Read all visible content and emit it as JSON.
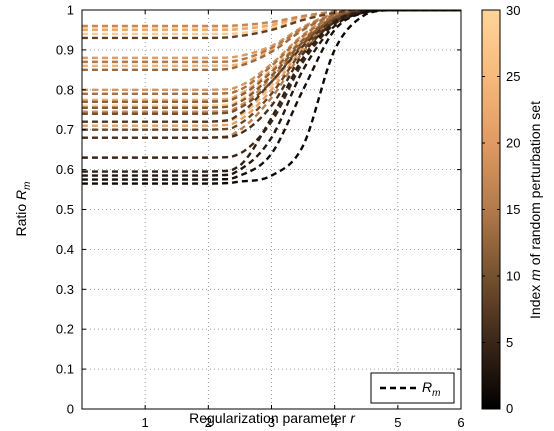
{
  "chart_data": {
    "type": "line",
    "xlabel": "Regularization parameter r",
    "ylabel": "Ratio R_m",
    "xlim": [
      0,
      6
    ],
    "ylim": [
      0,
      1
    ],
    "xticks": [
      "1",
      "2",
      "3",
      "4",
      "5",
      "6"
    ],
    "yticks": [
      "0",
      "0.1",
      "0.2",
      "0.3",
      "0.4",
      "0.5",
      "0.6",
      "0.7",
      "0.8",
      "0.9",
      "1"
    ],
    "grid": "dotted",
    "line_style": "dashed",
    "legend": {
      "label": "R_m",
      "placement": "bottom-right"
    },
    "colorbar": {
      "label": "Index m of random perturbation set",
      "range": [
        0,
        30
      ],
      "ticks": [
        "0",
        "5",
        "10",
        "15",
        "20",
        "25",
        "30"
      ],
      "colormap": [
        "#000000",
        "#3a2618",
        "#75512f",
        "#b27a4b",
        "#e09a63",
        "#f7b97c",
        "#ffd599"
      ]
    },
    "x": [
      0,
      2.0,
      2.5,
      3.0,
      3.5,
      4.0,
      4.5,
      5.0,
      6.0
    ],
    "series": [
      {
        "m": 1,
        "values": [
          0.565,
          0.565,
          0.57,
          0.585,
          0.66,
          0.9,
          0.99,
          1.0,
          1.0
        ]
      },
      {
        "m": 2,
        "values": [
          0.575,
          0.575,
          0.585,
          0.64,
          0.8,
          0.95,
          0.995,
          1.0,
          1.0
        ]
      },
      {
        "m": 3,
        "values": [
          0.585,
          0.585,
          0.6,
          0.68,
          0.85,
          0.96,
          0.995,
          1.0,
          1.0
        ]
      },
      {
        "m": 4,
        "values": [
          0.595,
          0.595,
          0.61,
          0.73,
          0.88,
          0.97,
          0.998,
          1.0,
          1.0
        ]
      },
      {
        "m": 5,
        "values": [
          0.63,
          0.63,
          0.64,
          0.72,
          0.87,
          0.965,
          0.997,
          1.0,
          1.0
        ]
      },
      {
        "m": 6,
        "values": [
          0.68,
          0.68,
          0.69,
          0.76,
          0.89,
          0.97,
          0.998,
          1.0,
          1.0
        ]
      },
      {
        "m": 7,
        "values": [
          0.72,
          0.72,
          0.74,
          0.82,
          0.91,
          0.975,
          0.998,
          1.0,
          1.0
        ]
      },
      {
        "m": 8,
        "values": [
          0.93,
          0.93,
          0.935,
          0.95,
          0.975,
          0.993,
          1.0,
          1.0,
          1.0
        ]
      },
      {
        "m": 9,
        "values": [
          0.7,
          0.7,
          0.715,
          0.79,
          0.9,
          0.972,
          0.998,
          1.0,
          1.0
        ]
      },
      {
        "m": 10,
        "values": [
          0.74,
          0.74,
          0.755,
          0.82,
          0.915,
          0.978,
          0.998,
          1.0,
          1.0
        ]
      },
      {
        "m": 11,
        "values": [
          0.755,
          0.755,
          0.77,
          0.835,
          0.92,
          0.98,
          0.999,
          1.0,
          1.0
        ]
      },
      {
        "m": 12,
        "values": [
          0.77,
          0.77,
          0.785,
          0.845,
          0.925,
          0.982,
          0.999,
          1.0,
          1.0
        ]
      },
      {
        "m": 13,
        "values": [
          0.85,
          0.85,
          0.86,
          0.895,
          0.95,
          0.988,
          1.0,
          1.0,
          1.0
        ]
      },
      {
        "m": 14,
        "values": [
          0.79,
          0.79,
          0.8,
          0.86,
          0.935,
          0.985,
          0.999,
          1.0,
          1.0
        ]
      },
      {
        "m": 15,
        "values": [
          0.87,
          0.87,
          0.875,
          0.905,
          0.955,
          0.99,
          1.0,
          1.0,
          1.0
        ]
      },
      {
        "m": 16,
        "values": [
          0.68,
          0.68,
          0.7,
          0.78,
          0.895,
          0.97,
          0.998,
          1.0,
          1.0
        ]
      },
      {
        "m": 17,
        "values": [
          0.96,
          0.96,
          0.962,
          0.97,
          0.985,
          0.996,
          1.0,
          1.0,
          1.0
        ]
      },
      {
        "m": 18,
        "values": [
          0.745,
          0.745,
          0.76,
          0.83,
          0.92,
          0.98,
          0.999,
          1.0,
          1.0
        ]
      },
      {
        "m": 19,
        "values": [
          0.8,
          0.8,
          0.81,
          0.865,
          0.938,
          0.986,
          0.999,
          1.0,
          1.0
        ]
      },
      {
        "m": 20,
        "values": [
          0.88,
          0.88,
          0.885,
          0.91,
          0.958,
          0.991,
          1.0,
          1.0,
          1.0
        ]
      },
      {
        "m": 21,
        "values": [
          0.71,
          0.71,
          0.725,
          0.8,
          0.905,
          0.974,
          0.998,
          1.0,
          1.0
        ]
      },
      {
        "m": 22,
        "values": [
          0.95,
          0.95,
          0.952,
          0.962,
          0.982,
          0.995,
          1.0,
          1.0,
          1.0
        ]
      },
      {
        "m": 23,
        "values": [
          0.775,
          0.775,
          0.79,
          0.85,
          0.928,
          0.983,
          0.999,
          1.0,
          1.0
        ]
      },
      {
        "m": 24,
        "values": [
          0.86,
          0.86,
          0.865,
          0.9,
          0.952,
          0.989,
          1.0,
          1.0,
          1.0
        ]
      },
      {
        "m": 25,
        "values": [
          0.79,
          0.79,
          0.8,
          0.86,
          0.933,
          0.985,
          0.999,
          1.0,
          1.0
        ]
      },
      {
        "m": 26,
        "values": [
          0.72,
          0.72,
          0.735,
          0.81,
          0.91,
          0.976,
          0.998,
          1.0,
          1.0
        ]
      },
      {
        "m": 27,
        "values": [
          0.87,
          0.87,
          0.875,
          0.905,
          0.955,
          0.99,
          1.0,
          1.0,
          1.0
        ]
      },
      {
        "m": 28,
        "values": [
          0.94,
          0.94,
          0.942,
          0.955,
          0.978,
          0.994,
          1.0,
          1.0,
          1.0
        ]
      },
      {
        "m": 29,
        "values": [
          0.76,
          0.76,
          0.775,
          0.84,
          0.925,
          0.982,
          0.999,
          1.0,
          1.0
        ]
      },
      {
        "m": 30,
        "values": [
          0.955,
          0.955,
          0.957,
          0.966,
          0.984,
          0.996,
          1.0,
          1.0,
          1.0
        ]
      }
    ]
  }
}
